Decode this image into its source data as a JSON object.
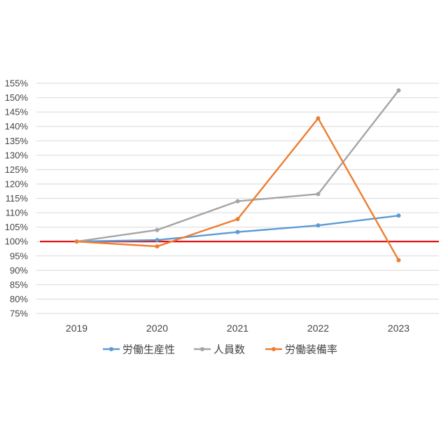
{
  "chart_data": {
    "type": "line",
    "categories": [
      "2019",
      "2020",
      "2021",
      "2022",
      "2023"
    ],
    "series": [
      {
        "name": "労働生産性",
        "color": "#5B9BD5",
        "values": [
          100,
          100.5,
          103.3,
          105.6,
          109.0
        ]
      },
      {
        "name": "人員数",
        "color": "#A5A5A5",
        "values": [
          100,
          104.0,
          114.0,
          116.5,
          152.5
        ]
      },
      {
        "name": "労働装備率",
        "color": "#ED7D31",
        "values": [
          100,
          98.3,
          107.8,
          142.8,
          93.5
        ]
      }
    ],
    "yticks": [
      "75%",
      "80%",
      "85%",
      "90%",
      "95%",
      "100%",
      "105%",
      "110%",
      "115%",
      "120%",
      "125%",
      "130%",
      "135%",
      "140%",
      "145%",
      "150%",
      "155%"
    ],
    "ylim": [
      75,
      155
    ],
    "reference_line": {
      "value": 100,
      "color": "#E00000"
    },
    "grid": true,
    "legend_position": "bottom"
  }
}
